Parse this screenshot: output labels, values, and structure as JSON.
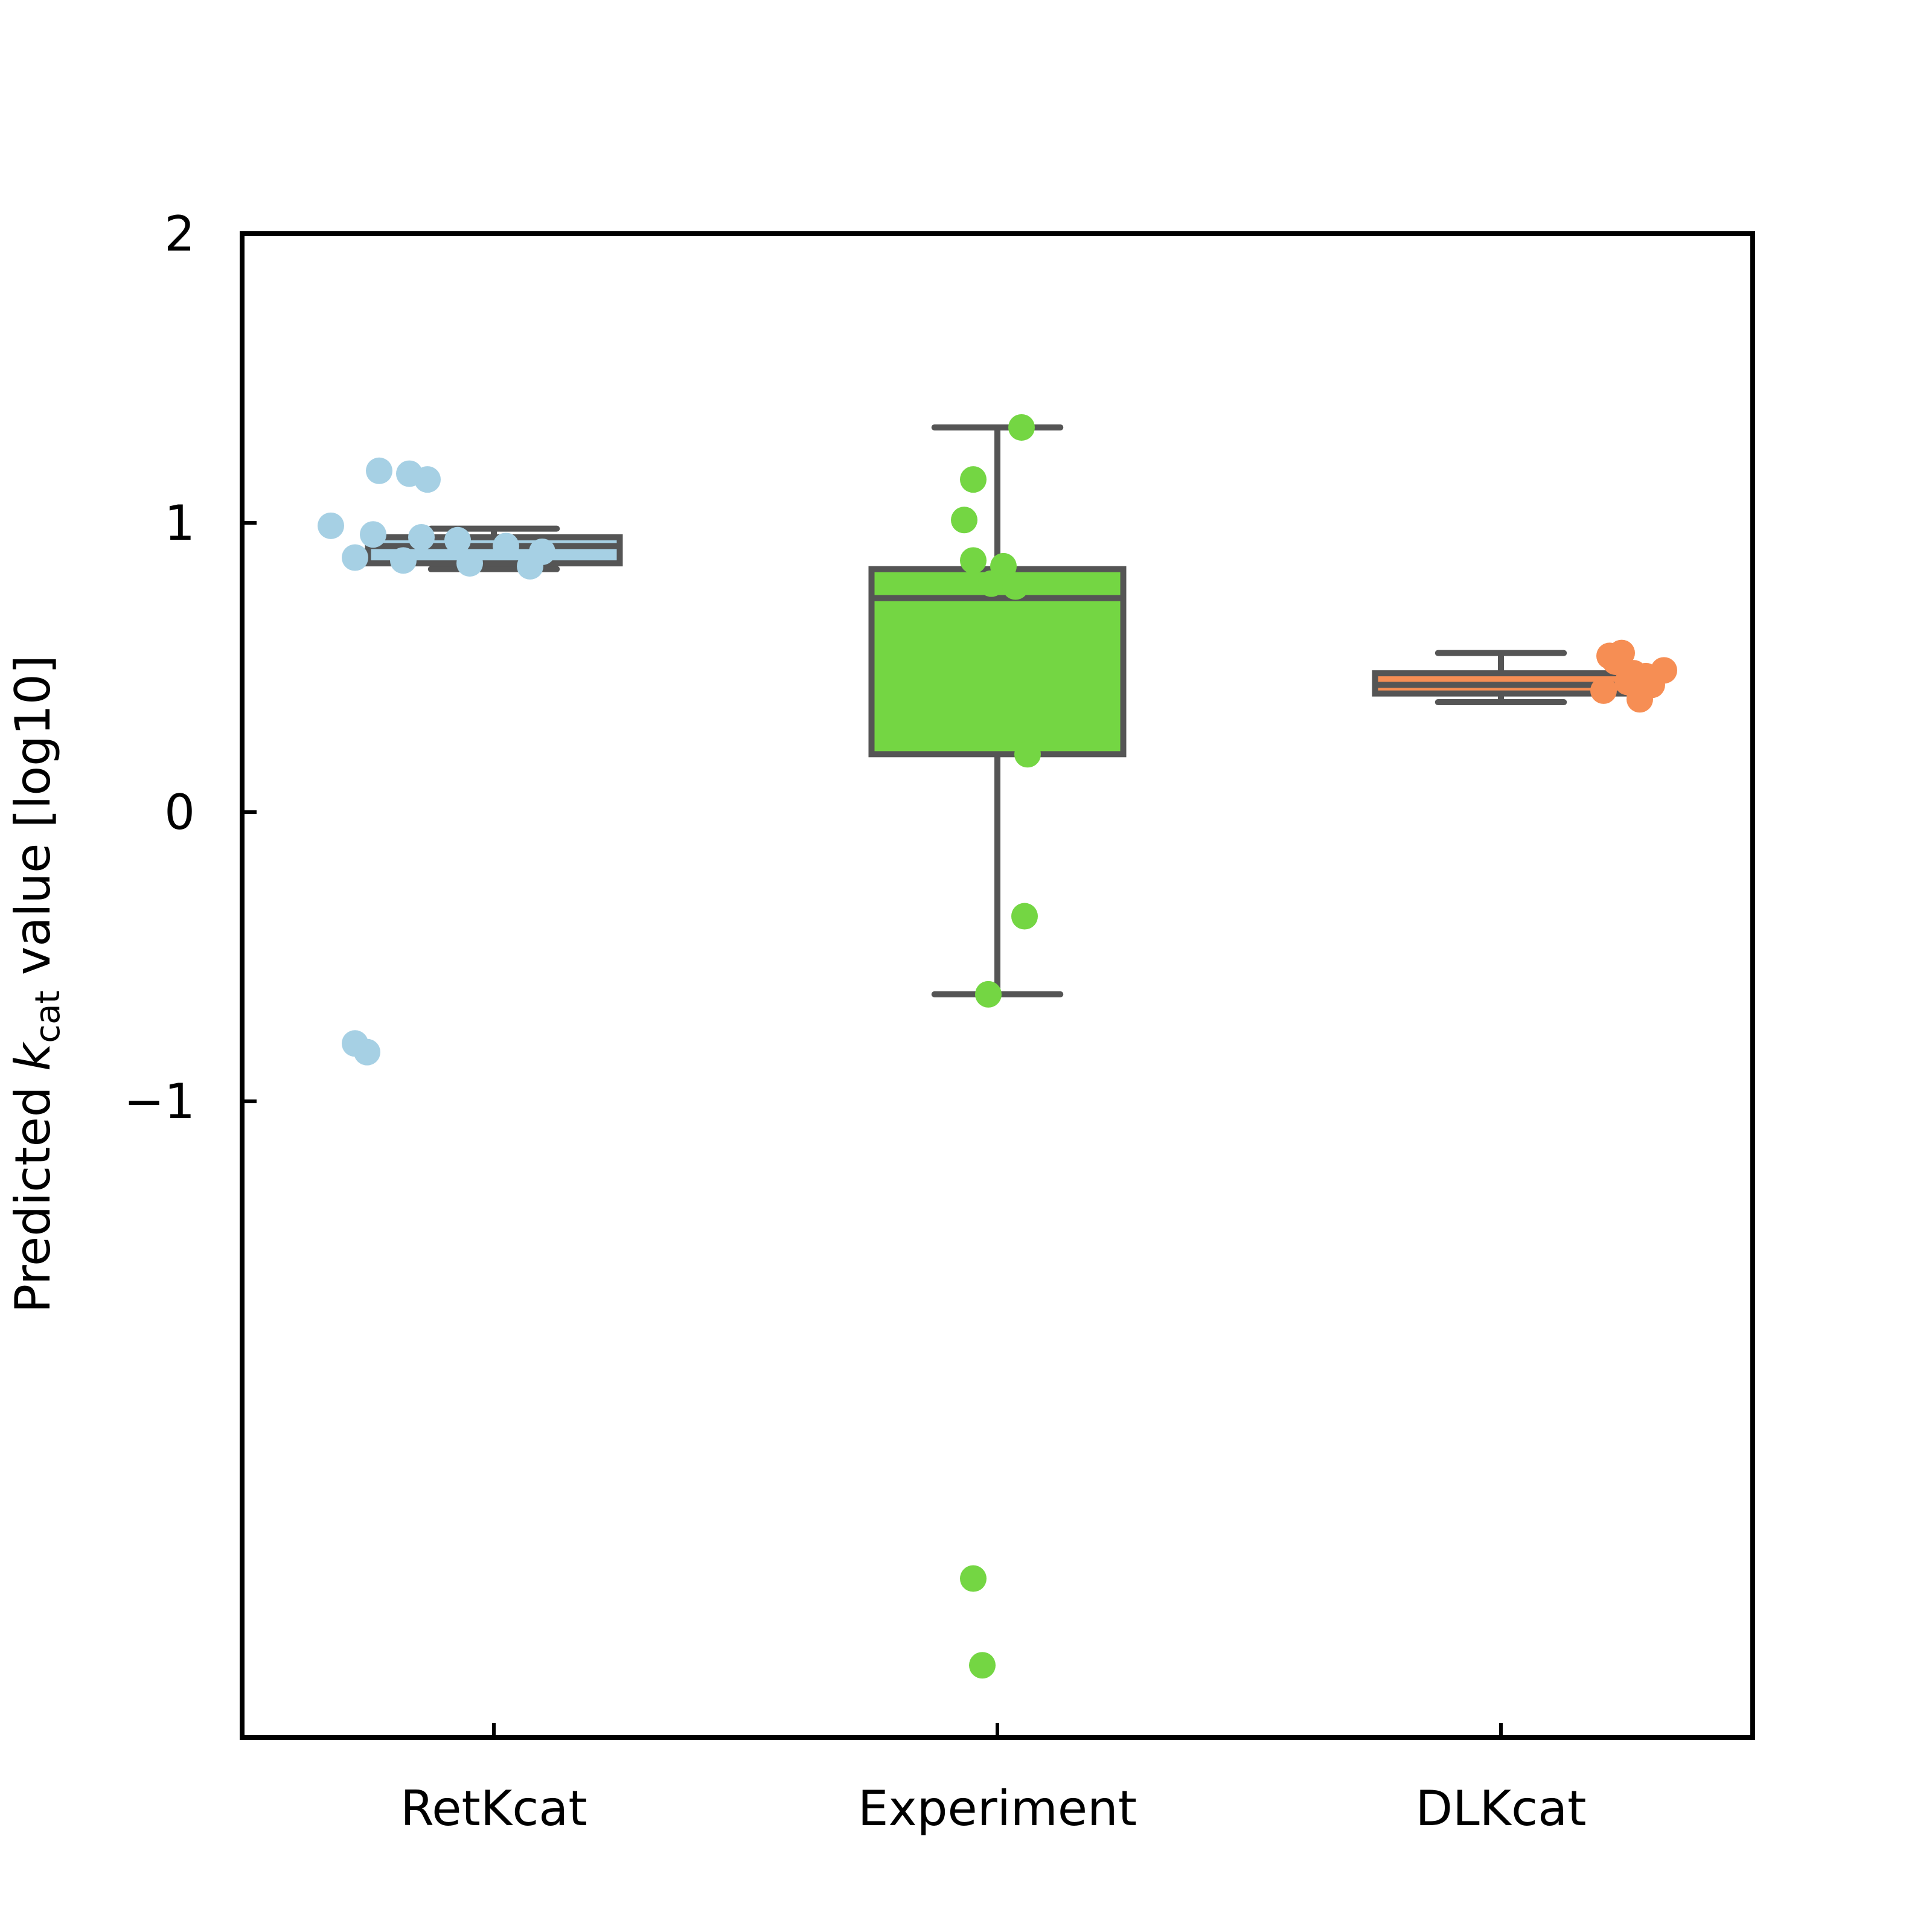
{
  "chart_data": {
    "type": "box",
    "ylabel": {
      "prefix": "Predicted ",
      "symbol": "k",
      "subscript": "cat",
      "suffix": " value [log10]"
    },
    "categories": [
      "RetKcat",
      "Experiment",
      "DLKcat"
    ],
    "ylim": [
      -3.2,
      2.0
    ],
    "yticks": [
      {
        "value": 2,
        "label": "2"
      },
      {
        "value": 1,
        "label": "1"
      },
      {
        "value": 0,
        "label": "0"
      },
      {
        "value": -1,
        "label": "−1"
      }
    ],
    "grid": false,
    "edge_color": "#555555",
    "series": [
      {
        "category": "RetKcat",
        "color": "#a6d0e4",
        "whisker_low": 0.84,
        "q1": 0.86,
        "median": 0.92,
        "q3": 0.95,
        "whisker_high": 0.98,
        "points": [
          0.99,
          0.96,
          0.95,
          0.94,
          0.92,
          0.9,
          0.88,
          0.87,
          0.86,
          0.85,
          1.18,
          1.17,
          1.15,
          -0.8,
          -0.83
        ]
      },
      {
        "category": "Experiment",
        "color": "#74d643",
        "whisker_low": -0.63,
        "q1": 0.2,
        "median": 0.74,
        "q3": 0.84,
        "whisker_high": 1.33,
        "points": [
          1.33,
          1.15,
          1.01,
          0.87,
          0.85,
          0.79,
          0.78,
          0.2,
          -0.36,
          -0.63,
          -2.65,
          -2.95
        ]
      },
      {
        "category": "DLKcat",
        "color": "#f68e54",
        "whisker_low": 0.38,
        "q1": 0.41,
        "median": 0.44,
        "q3": 0.48,
        "whisker_high": 0.55,
        "points": [
          0.55,
          0.54,
          0.52,
          0.49,
          0.48,
          0.47,
          0.45,
          0.44,
          0.42,
          0.41,
          0.39
        ]
      }
    ]
  }
}
